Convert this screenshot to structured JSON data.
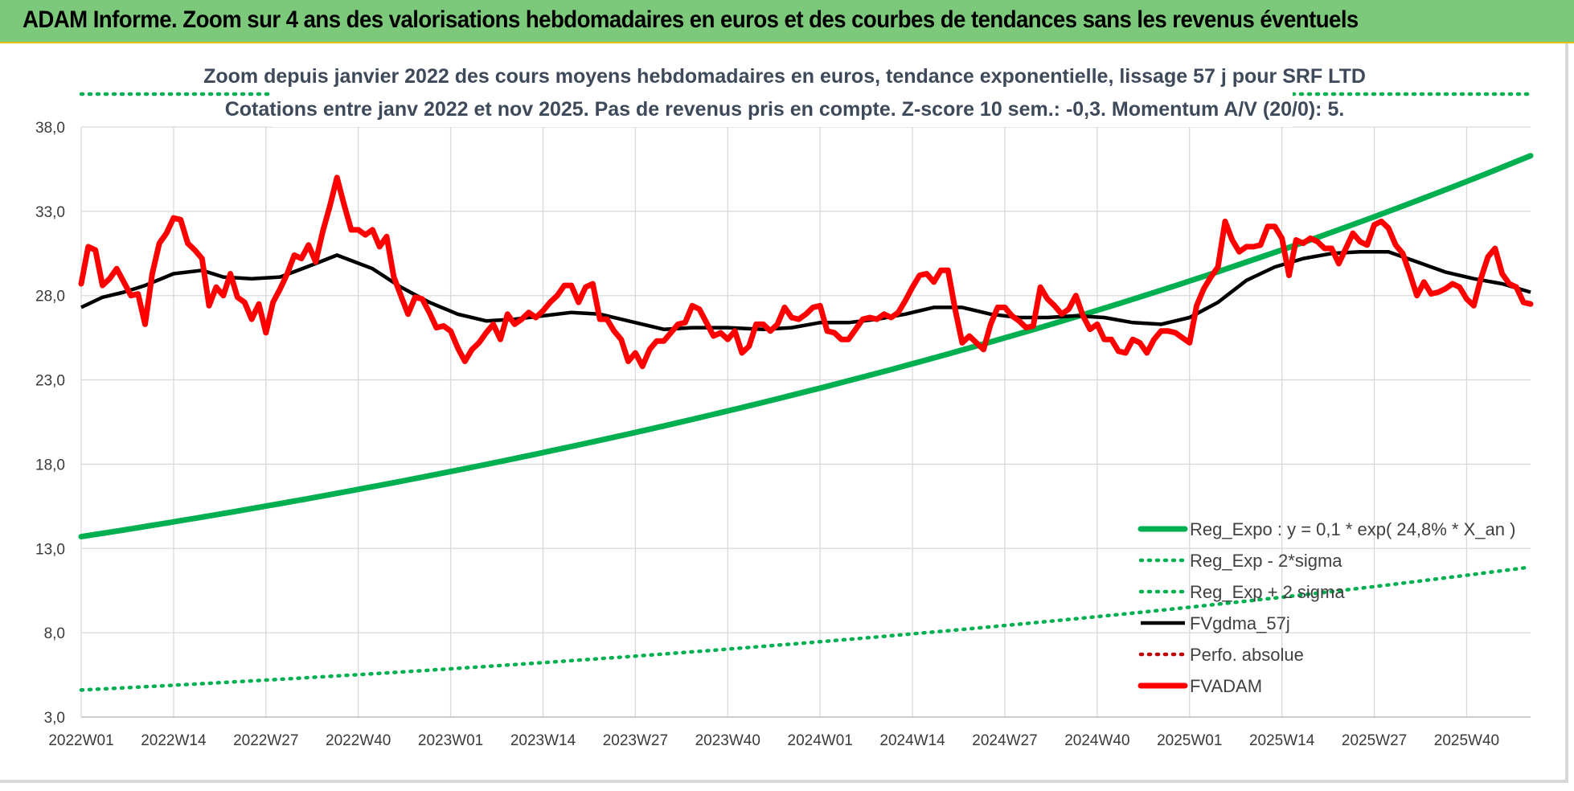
{
  "header": {
    "title": "ADAM Informe. Zoom sur 4 ans des valorisations hebdomadaires en euros et des courbes de tendances sans les revenus éventuels"
  },
  "colors": {
    "banner": "#7dc97b",
    "reg_expo": "#00b050",
    "fvgdma": "#000000",
    "fvadam": "#ff0000",
    "perfo": "#c00000",
    "grid": "#d9d9d9"
  },
  "chart_data": {
    "type": "line",
    "title": "Zoom depuis janvier 2022 des cours moyens hebdomadaires en euros, tendance exponentielle, lissage 57 j pour SRF LTD",
    "subtitle": "Cotations entre janv 2022 et nov 2025. Pas de revenus pris en compte. Z-score 10 sem.: -0,3. Momentum A/V (20/0): 5.",
    "xlabel": "",
    "ylabel": "",
    "ylim": [
      3,
      38
    ],
    "yticks": [
      "3,0",
      "8,0",
      "13,0",
      "18,0",
      "23,0",
      "28,0",
      "33,0",
      "38,0"
    ],
    "ytick_values": [
      3,
      8,
      13,
      18,
      23,
      28,
      33,
      38
    ],
    "n_weeks": 204,
    "categories": [
      "2022W01",
      "2022W14",
      "2022W27",
      "2022W40",
      "2023W01",
      "2023W14",
      "2023W27",
      "2023W40",
      "2024W01",
      "2024W14",
      "2024W27",
      "2024W40",
      "2025W01",
      "2025W14",
      "2025W27",
      "2025W40"
    ],
    "category_index": [
      0,
      13,
      26,
      39,
      52,
      65,
      78,
      91,
      104,
      117,
      130,
      143,
      156,
      169,
      182,
      195
    ],
    "grid": true,
    "legend_position": "bottom-right",
    "series": [
      {
        "name": "Reg_Expo : y = 0,1 * exp( 24,8% *  X_an )",
        "style": "solid-thick",
        "color": "#00b050",
        "x": [
          0,
          204
        ],
        "values": [
          13.7,
          36.3
        ],
        "curve": "exponential"
      },
      {
        "name": "Reg_Exp - 2*sigma",
        "style": "dotted",
        "color": "#00b050",
        "x": [
          0,
          204
        ],
        "values": [
          4.6,
          11.9
        ],
        "curve": "exponential"
      },
      {
        "name": "Reg_Exp + 2 sigma",
        "style": "dotted",
        "color": "#00b050",
        "x": [
          0,
          204
        ],
        "values": [
          40.3,
          40.3
        ],
        "curve": "clipped-top"
      },
      {
        "name": "FVgdma_57j",
        "style": "solid",
        "color": "#000000",
        "x": [
          0,
          3,
          6,
          9,
          13,
          17,
          20,
          24,
          28,
          33,
          36,
          41,
          45,
          49,
          53,
          57,
          61,
          65,
          69,
          73,
          77,
          82,
          86,
          91,
          96,
          100,
          104,
          108,
          112,
          116,
          120,
          124,
          128,
          132,
          136,
          140,
          144,
          148,
          152,
          156,
          160,
          164,
          168,
          172,
          176,
          180,
          184,
          188,
          192,
          196,
          200,
          204
        ],
        "values": [
          27.3,
          27.9,
          28.2,
          28.6,
          29.3,
          29.5,
          29.1,
          29.0,
          29.1,
          29.9,
          30.4,
          29.6,
          28.5,
          27.6,
          26.9,
          26.5,
          26.6,
          26.8,
          27.0,
          26.9,
          26.5,
          26.0,
          26.1,
          26.1,
          26.0,
          26.1,
          26.4,
          26.4,
          26.6,
          26.9,
          27.3,
          27.3,
          26.9,
          26.7,
          26.7,
          26.8,
          26.7,
          26.4,
          26.3,
          26.7,
          27.6,
          28.9,
          29.7,
          30.2,
          30.5,
          30.6,
          30.6,
          30.0,
          29.4,
          29.0,
          28.7,
          28.2
        ]
      },
      {
        "name": "Perfo. absolue",
        "style": "dotted",
        "color": "#c00000",
        "x": [],
        "values": []
      },
      {
        "name": "FVADAM",
        "style": "solid-thick",
        "color": "#ff0000",
        "x": [
          0,
          1,
          2,
          3,
          4,
          5,
          6,
          7,
          8,
          9,
          10,
          11,
          12,
          13,
          14,
          15,
          16,
          17,
          18,
          19,
          20,
          21,
          22,
          23,
          24,
          25,
          26,
          27,
          28,
          29,
          30,
          31,
          32,
          33,
          34,
          35,
          36,
          37,
          38,
          39,
          40,
          41,
          42,
          43,
          44,
          45,
          46,
          47,
          48,
          49,
          50,
          51,
          52,
          53,
          54,
          55,
          56,
          57,
          58,
          59,
          60,
          61,
          62,
          63,
          64,
          65,
          66,
          67,
          68,
          69,
          70,
          71,
          72,
          73,
          74,
          75,
          76,
          77,
          78,
          79,
          80,
          81,
          82,
          83,
          84,
          85,
          86,
          87,
          88,
          89,
          90,
          91,
          92,
          93,
          94,
          95,
          96,
          97,
          98,
          99,
          100,
          101,
          102,
          103,
          104,
          105,
          106,
          107,
          108,
          109,
          110,
          111,
          112,
          113,
          114,
          115,
          116,
          117,
          118,
          119,
          120,
          121,
          122,
          123,
          124,
          125,
          126,
          127,
          128,
          129,
          130,
          131,
          132,
          133,
          134,
          135,
          136,
          137,
          138,
          139,
          140,
          141,
          142,
          143,
          144,
          145,
          146,
          147,
          148,
          149,
          150,
          151,
          152,
          153,
          154,
          155,
          156,
          157,
          158,
          159,
          160,
          161,
          162,
          163,
          164,
          165,
          166,
          167,
          168,
          169,
          170,
          171,
          172,
          173,
          174,
          175,
          176,
          177,
          178,
          179,
          180,
          181,
          182,
          183,
          184,
          185,
          186,
          187,
          188,
          189,
          190,
          191,
          192,
          193,
          194,
          195,
          196,
          197,
          198,
          199,
          200,
          201,
          202,
          203,
          204
        ],
        "values": [
          28.7,
          30.9,
          30.7,
          28.6,
          29.0,
          29.6,
          28.8,
          28.0,
          28.1,
          26.3,
          29.3,
          31.1,
          31.7,
          32.6,
          32.5,
          31.1,
          30.7,
          30.2,
          27.4,
          28.5,
          28.0,
          29.3,
          27.9,
          27.6,
          26.6,
          27.5,
          25.8,
          27.6,
          28.4,
          29.3,
          30.4,
          30.2,
          31.0,
          30.0,
          31.8,
          33.3,
          35.0,
          33.4,
          31.9,
          31.9,
          31.6,
          31.9,
          30.9,
          31.5,
          29.1,
          28.0,
          26.9,
          27.9,
          27.8,
          27.0,
          26.1,
          26.2,
          25.9,
          24.9,
          24.1,
          24.8,
          25.2,
          25.8,
          26.3,
          25.4,
          26.9,
          26.3,
          26.6,
          27.0,
          26.7,
          27.1,
          27.6,
          28.0,
          28.6,
          28.6,
          27.6,
          28.5,
          28.7,
          26.6,
          26.6,
          25.9,
          25.4,
          24.1,
          24.6,
          23.8,
          24.8,
          25.3,
          25.3,
          25.8,
          26.3,
          26.4,
          27.4,
          27.2,
          26.4,
          25.6,
          25.8,
          25.4,
          25.9,
          24.6,
          25.0,
          26.3,
          26.3,
          25.9,
          26.3,
          27.3,
          26.7,
          26.6,
          26.9,
          27.3,
          27.4,
          25.9,
          25.8,
          25.4,
          25.4,
          26.0,
          26.6,
          26.7,
          26.6,
          26.9,
          26.7,
          27.0,
          27.7,
          28.5,
          29.2,
          29.3,
          28.8,
          29.5,
          29.5,
          27.2,
          25.2,
          25.6,
          25.2,
          24.8,
          26.3,
          27.3,
          27.3,
          26.8,
          26.5,
          26.1,
          26.2,
          28.5,
          27.8,
          27.4,
          26.9,
          27.2,
          28.0,
          26.8,
          26.0,
          26.3,
          25.4,
          25.4,
          24.7,
          24.6,
          25.4,
          25.2,
          24.6,
          25.4,
          25.9,
          25.9,
          25.8,
          25.5,
          25.2,
          27.4,
          28.4,
          29.1,
          29.7,
          32.4,
          31.3,
          30.6,
          30.9,
          30.9,
          31.0,
          32.1,
          32.1,
          31.4,
          29.2,
          31.3,
          31.1,
          31.4,
          31.2,
          30.8,
          30.8,
          29.9,
          30.8,
          31.7,
          31.2,
          31.0,
          32.2,
          32.4,
          32.0,
          31.0,
          30.5,
          29.3,
          28.0,
          28.8,
          28.1,
          28.2,
          28.4,
          28.7,
          28.5,
          27.8,
          27.4,
          29.0,
          30.3,
          30.8,
          29.3,
          28.7,
          28.5,
          27.6,
          27.5
        ]
      }
    ]
  }
}
